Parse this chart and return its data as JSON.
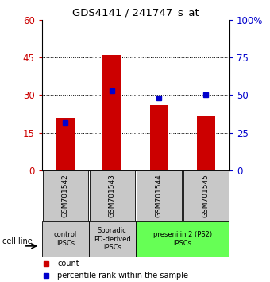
{
  "title": "GDS4141 / 241747_s_at",
  "samples": [
    "GSM701542",
    "GSM701543",
    "GSM701544",
    "GSM701545"
  ],
  "count_values": [
    21,
    46,
    26,
    22
  ],
  "percentile_values": [
    32,
    53,
    48,
    50
  ],
  "left_ylim": [
    0,
    60
  ],
  "right_ylim": [
    0,
    100
  ],
  "left_yticks": [
    0,
    15,
    30,
    45,
    60
  ],
  "right_yticks": [
    0,
    25,
    50,
    75,
    100
  ],
  "right_yticklabels": [
    "0",
    "25",
    "50",
    "75",
    "100%"
  ],
  "bar_color": "#cc0000",
  "dot_color": "#0000cc",
  "tick_color_left": "#cc0000",
  "tick_color_right": "#0000cc",
  "grid_yticks": [
    15,
    30,
    45
  ],
  "group_data": [
    {
      "span": [
        0,
        1
      ],
      "label": "control\nIPSCs",
      "color": "#c8c8c8"
    },
    {
      "span": [
        1,
        2
      ],
      "label": "Sporadic\nPD-derived\niPSCs",
      "color": "#c8c8c8"
    },
    {
      "span": [
        2,
        4
      ],
      "label": "presenilin 2 (PS2)\niPSCs",
      "color": "#66ff55"
    }
  ],
  "cell_line_label": "cell line",
  "legend_count_label": "count",
  "legend_pct_label": "percentile rank within the sample",
  "figsize": [
    3.4,
    3.54
  ],
  "dpi": 100
}
